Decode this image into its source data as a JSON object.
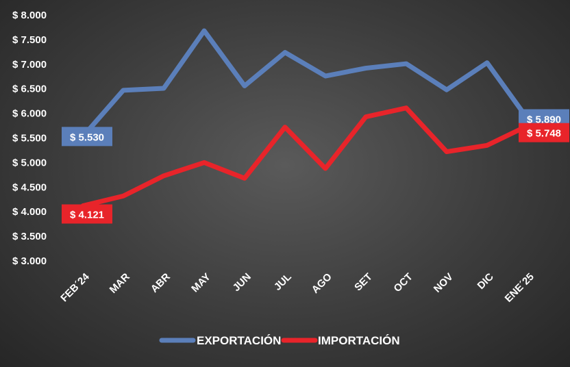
{
  "chart_data": {
    "type": "line",
    "title": "",
    "xlabel": "",
    "ylabel": "",
    "categories": [
      "FEB´24",
      "MAR",
      "ABR",
      "MAY",
      "JUN",
      "JUL",
      "AGO",
      "SET",
      "OCT",
      "NOV",
      "DIC",
      "ENE´25"
    ],
    "ylim": [
      3000,
      8000
    ],
    "yticks": [
      3000,
      3500,
      4000,
      4500,
      5000,
      5500,
      6000,
      6500,
      7000,
      7500,
      8000
    ],
    "ytick_labels": [
      "$ 3.000",
      "$ 3.500",
      "$ 4.000",
      "$ 4.500",
      "$ 5.000",
      "$ 5.500",
      "$ 6.000",
      "$ 6.500",
      "$ 7.000",
      "$ 7.500",
      "$ 8.000"
    ],
    "grid": false,
    "legend_position": "bottom",
    "series": [
      {
        "name": "EXPORTACIÓN",
        "color": "#5b7fba",
        "values": [
          5530,
          6470,
          6510,
          7680,
          6560,
          7240,
          6760,
          6920,
          7010,
          6480,
          7030,
          5890
        ],
        "start_label": "$ 5.530",
        "end_label": "$ 5.890"
      },
      {
        "name": "IMPORTACIÓN",
        "color": "#e8242a",
        "values": [
          4121,
          4320,
          4730,
          5000,
          4680,
          5720,
          4880,
          5930,
          6110,
          5220,
          5350,
          5748
        ],
        "start_label": "$ 4.121",
        "end_label": "$ 5.748"
      }
    ]
  }
}
